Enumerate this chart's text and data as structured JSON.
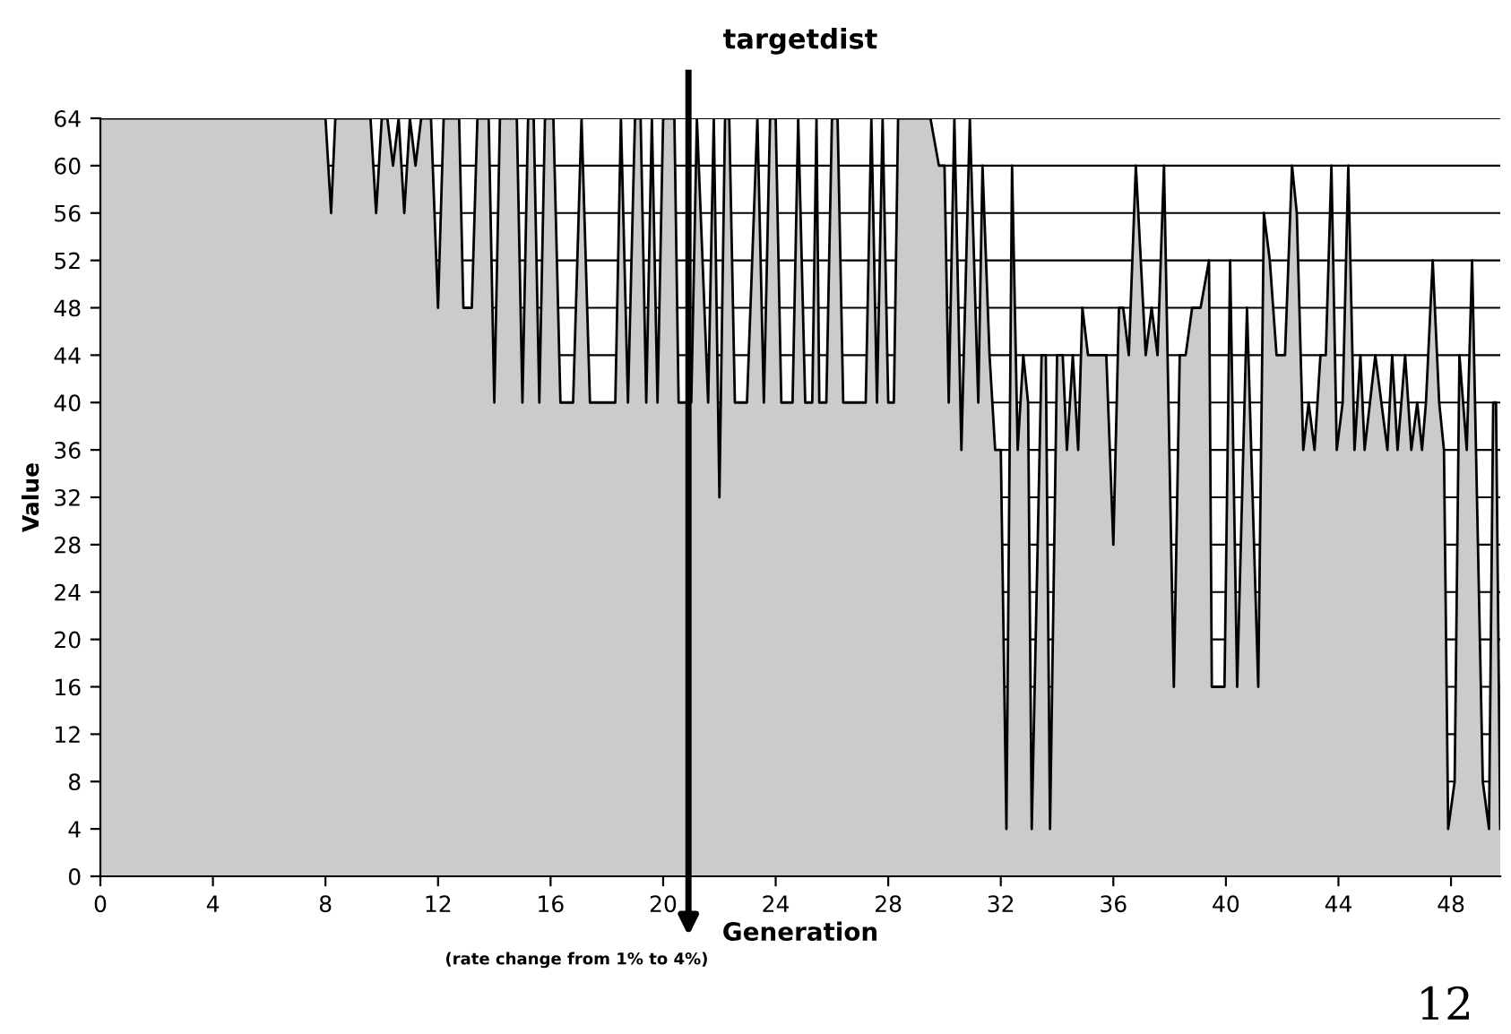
{
  "chart_data": {
    "type": "area",
    "title": "targetdist",
    "xlabel": "Generation",
    "ylabel": "Value",
    "x": [
      0,
      8.0,
      8.2,
      8.35,
      9.6,
      9.8,
      10.0,
      10.2,
      10.4,
      10.6,
      10.8,
      11.0,
      11.2,
      11.4,
      11.75,
      12.0,
      12.2,
      12.75,
      12.9,
      13.2,
      13.4,
      13.8,
      14.0,
      14.2,
      14.8,
      15.0,
      15.2,
      15.4,
      15.6,
      15.8,
      16.1,
      16.35,
      16.8,
      17.1,
      17.4,
      18.3,
      18.5,
      18.75,
      19.0,
      19.2,
      19.4,
      19.6,
      19.8,
      20.0,
      20.4,
      20.55,
      21.0,
      21.2,
      21.6,
      21.8,
      22.0,
      22.2,
      22.35,
      22.55,
      22.98,
      23.35,
      23.58,
      23.8,
      24.0,
      24.2,
      24.6,
      24.8,
      25.05,
      25.3,
      25.45,
      25.55,
      25.8,
      26.0,
      26.2,
      26.4,
      26.5,
      27.2,
      27.4,
      27.6,
      27.8,
      28.0,
      28.2,
      28.35,
      29.5,
      29.8,
      30.0,
      30.15,
      30.35,
      30.6,
      30.9,
      31.2,
      31.35,
      31.6,
      31.8,
      32.0,
      32.2,
      32.4,
      32.6,
      32.8,
      32.97,
      33.1,
      33.45,
      33.6,
      33.75,
      34.0,
      34.2,
      34.35,
      34.56,
      34.75,
      34.9,
      35.1,
      35.75,
      36.0,
      36.2,
      36.35,
      36.55,
      36.8,
      37.15,
      37.36,
      37.57,
      37.8,
      38.15,
      38.36,
      38.57,
      38.8,
      39.1,
      39.4,
      39.5,
      39.95,
      40.15,
      40.4,
      40.75,
      41.15,
      41.35,
      41.56,
      41.8,
      42.1,
      42.35,
      42.52,
      42.75,
      42.94,
      43.15,
      43.36,
      43.55,
      43.75,
      43.94,
      44.15,
      44.35,
      44.57,
      44.78,
      44.93,
      45.31,
      45.74,
      45.91,
      46.1,
      46.37,
      46.59,
      46.8,
      46.97,
      47.11,
      47.35,
      47.58,
      47.75,
      47.9,
      48.13,
      48.3,
      48.56,
      48.75,
      49.13,
      49.35,
      49.5,
      49.6,
      49.75
    ],
    "series": [
      {
        "color": "#cbcbcb",
        "values": [
          64,
          64,
          56,
          64,
          64,
          56,
          64,
          64,
          60,
          64,
          56,
          64,
          60,
          64,
          64,
          48,
          64,
          64,
          48,
          48,
          64,
          64,
          40,
          64,
          64,
          40,
          64,
          64,
          40,
          64,
          64,
          40,
          40,
          64,
          40,
          40,
          64,
          40,
          64,
          64,
          40,
          64,
          40,
          64,
          64,
          40,
          40,
          64,
          40,
          64,
          32,
          64,
          64,
          40,
          40,
          64,
          40,
          64,
          64,
          40,
          40,
          64,
          40,
          40,
          64,
          40,
          40,
          64,
          64,
          40,
          40,
          40,
          64,
          40,
          64,
          40,
          40,
          64,
          64,
          60,
          60,
          40,
          64,
          36,
          64,
          40,
          60,
          44,
          36,
          36,
          4,
          60,
          36,
          44,
          40,
          4,
          44,
          44,
          4,
          44,
          44,
          36,
          44,
          36,
          48,
          44,
          44,
          28,
          48,
          48,
          44,
          60,
          44,
          48,
          44,
          60,
          16,
          44,
          44,
          48,
          48,
          52,
          16,
          16,
          52,
          16,
          48,
          16,
          56,
          52,
          44,
          44,
          60,
          56,
          36,
          40,
          36,
          44,
          44,
          60,
          36,
          40,
          60,
          36,
          44,
          36,
          44,
          36,
          44,
          36,
          44,
          36,
          40,
          36,
          40,
          52,
          40,
          36,
          4,
          8,
          44,
          36,
          52,
          8,
          4,
          40,
          40,
          4
        ]
      }
    ],
    "xlim": [
      0,
      49.75
    ],
    "ylim": [
      0,
      64
    ],
    "xticks": [
      0,
      4,
      8,
      12,
      16,
      20,
      24,
      28,
      32,
      36,
      40,
      44,
      48
    ],
    "yticks": [
      0,
      4,
      8,
      12,
      16,
      20,
      24,
      28,
      32,
      36,
      40,
      44,
      48,
      52,
      56,
      60,
      64
    ],
    "grid": "y",
    "legend": false,
    "ref_lines": [
      {
        "axis": "x",
        "value": 20.9,
        "label": "(rate change from 1% to 4%)",
        "color": "#000000"
      }
    ],
    "annotations": [
      "12"
    ]
  }
}
